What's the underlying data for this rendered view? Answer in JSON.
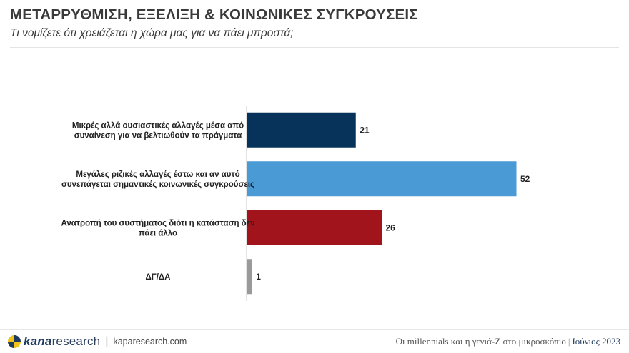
{
  "header": {
    "title": "ΜΕΤΑΡΡΥΘΜΙΣΗ, ΕΞΕΛΙΞΗ & ΚΟΙΝΩΝΙΚΕΣ ΣΥΓΚΡΟΥΣΕΙΣ",
    "subtitle": "Τι νομίζετε ότι χρειάζεται η χώρα μας για να πάει μπροστά;"
  },
  "chart_data": {
    "type": "bar",
    "orientation": "horizontal",
    "title": "",
    "xlabel": "",
    "ylabel": "",
    "xlim": [
      0,
      60
    ],
    "grid": false,
    "legend": "none",
    "categories": [
      [
        "Μικρές αλλά ουσιαστικές αλλαγές μέσα από",
        "συναίνεση για να βελτιωθούν τα πράγματα"
      ],
      [
        "Μεγάλες ριζικές αλλαγές έστω και αν αυτό",
        "συνεπάγεται σημαντικές κοινωνικές συγκρούσεις"
      ],
      [
        "Ανατροπή του συστήματος διότι η κατάσταση δεν",
        "πάει άλλο"
      ],
      [
        "ΔΓ/ΔΑ"
      ]
    ],
    "values": [
      21,
      52,
      26,
      1
    ],
    "colors": [
      "#07335a",
      "#4a9ad6",
      "#a1141b",
      "#9a9a9a"
    ]
  },
  "footer": {
    "brand_bold": "kana",
    "brand_light": "research",
    "separator": "|",
    "website": "kaparesearch.com",
    "report_title": "Οι millennials και η γενιά-Z στο μικροσκόπιο",
    "pipe": "|",
    "date": "Ιούνιος 2023"
  }
}
